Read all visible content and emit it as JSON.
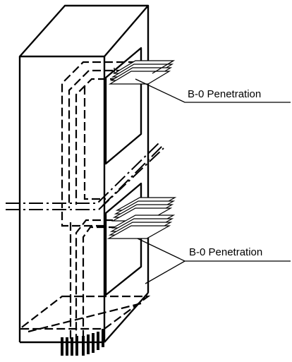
{
  "labels": {
    "upper_penetration": "B-0 Penetration",
    "lower_penetration": "B-0 Penetration"
  }
}
